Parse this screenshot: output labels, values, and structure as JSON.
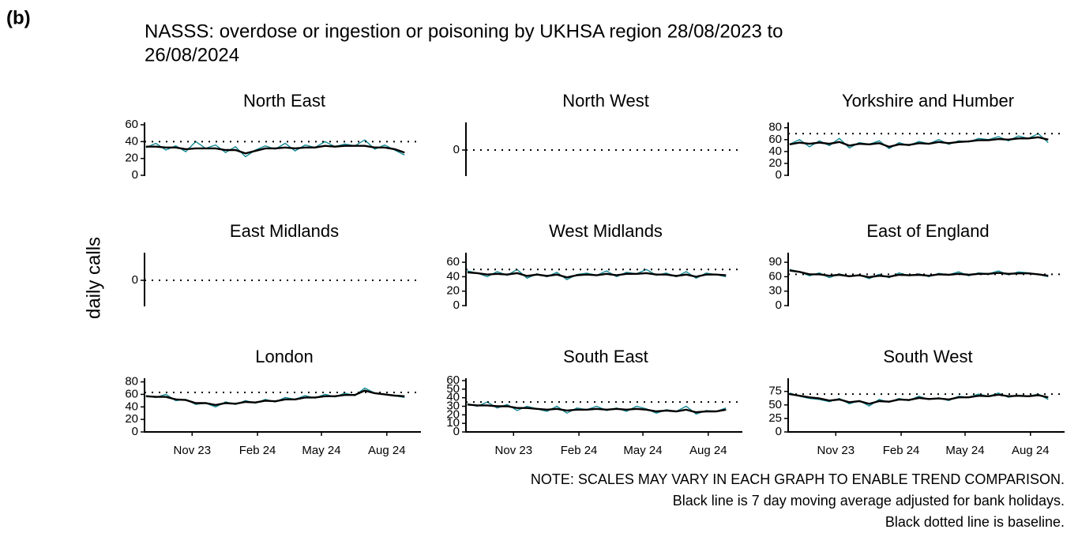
{
  "chart_data": {
    "type": "line",
    "panel_label": "(b)",
    "title_lines": [
      "NASSS: overdose or ingestion or poisoning by UKHSA region 28/08/2023 to",
      "26/08/2024"
    ],
    "ylabel": "daily calls",
    "notes": [
      "NOTE: SCALES MAY VARY IN EACH GRAPH TO ENABLE TREND COMPARISON.",
      "Black line is 7 day moving average adjusted for bank holidays.",
      "Black dotted line is baseline."
    ],
    "value_color": "#138a96",
    "average_color": "#000000",
    "x": [
      0,
      14,
      28,
      42,
      56,
      70,
      84,
      98,
      112,
      126,
      140,
      154,
      168,
      182,
      196,
      210,
      224,
      238,
      252,
      266,
      280,
      294,
      308,
      322,
      336,
      350,
      364
    ],
    "xlim": [
      -2,
      387
    ],
    "xticks": [
      {
        "value": 65,
        "label": "Nov 23"
      },
      {
        "value": 157,
        "label": "Feb 24"
      },
      {
        "value": 247,
        "label": "May 24"
      },
      {
        "value": 339,
        "label": "Aug 24"
      }
    ],
    "panels": [
      {
        "title": "North East",
        "ylim": [
          0,
          60
        ],
        "yticks": [
          0,
          20,
          40,
          60
        ],
        "baseline": 40,
        "values": [
          33,
          38,
          30,
          35,
          28,
          40,
          32,
          36,
          27,
          34,
          22,
          30,
          35,
          31,
          38,
          29,
          36,
          33,
          40,
          34,
          37,
          35,
          42,
          31,
          36,
          30,
          24
        ],
        "moving_average": [
          34,
          34,
          33,
          33,
          31,
          32,
          32,
          32,
          30,
          30,
          26,
          29,
          32,
          32,
          33,
          32,
          33,
          33,
          35,
          34,
          35,
          35,
          35,
          33,
          33,
          31,
          27
        ]
      },
      {
        "title": "North West",
        "ylim": [
          -1,
          1
        ],
        "yticks": [
          0
        ],
        "baseline": 0,
        "values": [],
        "moving_average": []
      },
      {
        "title": "Yorkshire and Humber",
        "ylim": [
          0,
          85
        ],
        "yticks": [
          0,
          20,
          40,
          60,
          80
        ],
        "baseline": 70,
        "values": [
          52,
          60,
          48,
          58,
          50,
          62,
          46,
          55,
          52,
          58,
          45,
          55,
          50,
          57,
          53,
          60,
          52,
          58,
          56,
          62,
          60,
          65,
          58,
          66,
          62,
          70,
          55
        ],
        "moving_average": [
          52,
          55,
          53,
          55,
          53,
          56,
          50,
          53,
          52,
          54,
          48,
          52,
          51,
          54,
          53,
          56,
          54,
          56,
          57,
          59,
          59,
          61,
          60,
          62,
          62,
          64,
          60
        ]
      },
      {
        "title": "East Midlands",
        "ylim": [
          -1,
          1
        ],
        "yticks": [
          0
        ],
        "baseline": 0,
        "values": [],
        "moving_average": []
      },
      {
        "title": "West Midlands",
        "ylim": [
          0,
          70
        ],
        "yticks": [
          0,
          20,
          40,
          60
        ],
        "baseline": 50,
        "values": [
          48,
          45,
          40,
          47,
          42,
          50,
          38,
          44,
          40,
          46,
          36,
          43,
          45,
          42,
          48,
          40,
          46,
          44,
          50,
          42,
          45,
          40,
          47,
          38,
          45,
          43,
          40
        ],
        "moving_average": [
          46,
          45,
          43,
          44,
          43,
          45,
          41,
          43,
          41,
          43,
          39,
          42,
          43,
          42,
          44,
          42,
          44,
          44,
          45,
          43,
          43,
          41,
          43,
          40,
          43,
          43,
          42
        ]
      },
      {
        "title": "East of England",
        "ylim": [
          0,
          105
        ],
        "yticks": [
          0,
          30,
          60,
          90
        ],
        "baseline": 65,
        "values": [
          75,
          70,
          62,
          68,
          58,
          66,
          60,
          64,
          56,
          65,
          58,
          68,
          62,
          66,
          60,
          67,
          64,
          70,
          62,
          68,
          66,
          72,
          64,
          70,
          68,
          65,
          60
        ],
        "moving_average": [
          73,
          70,
          65,
          65,
          62,
          64,
          61,
          63,
          59,
          62,
          60,
          64,
          63,
          64,
          62,
          65,
          64,
          66,
          64,
          66,
          66,
          68,
          66,
          67,
          67,
          65,
          62
        ]
      },
      {
        "title": "London",
        "ylim": [
          0,
          82
        ],
        "yticks": [
          0,
          20,
          40,
          60,
          80
        ],
        "baseline": 63,
        "values": [
          58,
          55,
          60,
          50,
          52,
          44,
          46,
          40,
          48,
          44,
          50,
          46,
          52,
          48,
          55,
          52,
          58,
          54,
          60,
          56,
          62,
          58,
          70,
          62,
          60,
          58,
          55
        ],
        "moving_average": [
          57,
          56,
          56,
          52,
          51,
          46,
          46,
          43,
          46,
          45,
          48,
          47,
          50,
          49,
          52,
          52,
          55,
          55,
          57,
          57,
          59,
          59,
          66,
          62,
          60,
          58,
          57
        ]
      },
      {
        "title": "South East",
        "ylim": [
          0,
          60
        ],
        "yticks": [
          0,
          10,
          20,
          30,
          40,
          50,
          60
        ],
        "baseline": 35,
        "values": [
          33,
          30,
          35,
          28,
          32,
          25,
          30,
          27,
          24,
          30,
          22,
          28,
          26,
          30,
          25,
          28,
          24,
          30,
          27,
          22,
          26,
          24,
          30,
          21,
          25,
          24,
          28
        ],
        "moving_average": [
          32,
          31,
          31,
          30,
          30,
          28,
          28,
          27,
          26,
          27,
          25,
          26,
          26,
          27,
          26,
          27,
          26,
          27,
          26,
          24,
          25,
          24,
          26,
          23,
          24,
          24,
          26
        ]
      },
      {
        "title": "South West",
        "ylim": [
          0,
          95
        ],
        "yticks": [
          0,
          25,
          50,
          75
        ],
        "baseline": 70,
        "values": [
          72,
          66,
          62,
          60,
          56,
          62,
          52,
          58,
          48,
          60,
          55,
          62,
          58,
          66,
          60,
          63,
          58,
          66,
          64,
          70,
          66,
          72,
          64,
          68,
          66,
          70,
          60
        ],
        "moving_average": [
          70,
          67,
          64,
          62,
          58,
          60,
          55,
          57,
          52,
          57,
          56,
          60,
          59,
          63,
          61,
          62,
          60,
          64,
          64,
          67,
          66,
          69,
          66,
          67,
          66,
          68,
          64
        ]
      }
    ]
  }
}
